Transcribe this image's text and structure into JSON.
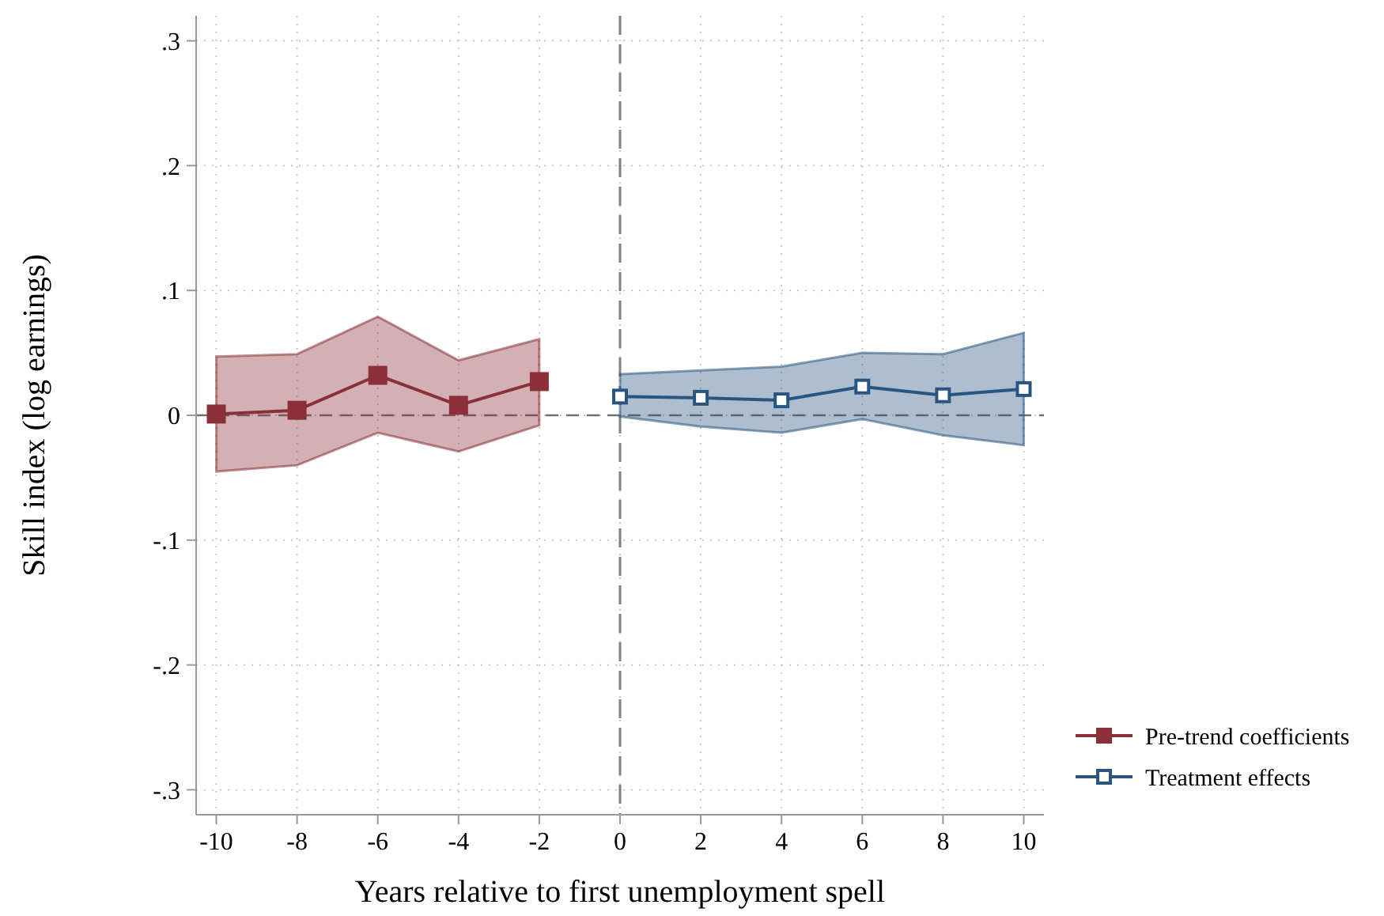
{
  "chart_data": {
    "type": "line",
    "xlabel": "Years relative to first unemployment spell",
    "ylabel": "Skill index (log earnings)",
    "xlim": [
      -10.5,
      10.5
    ],
    "xticks": [
      -10,
      -8,
      -6,
      -4,
      -2,
      0,
      2,
      4,
      6,
      8,
      10
    ],
    "ylim": [
      -0.32,
      0.32
    ],
    "yticks": [
      {
        "value": -0.3,
        "label": "-.3"
      },
      {
        "value": -0.2,
        "label": "-.2"
      },
      {
        "value": -0.1,
        "label": "-.1"
      },
      0,
      {
        "value": 0.1,
        "label": ".1"
      },
      {
        "value": 0.2,
        "label": ".2"
      },
      {
        "value": 0.3,
        "label": ".3"
      }
    ],
    "grid": true,
    "legend": "bottom right",
    "marker": "square",
    "ref_lines": [
      {
        "axis": "y",
        "value": 0,
        "color": "#707070",
        "line_style": "dashed"
      },
      {
        "axis": "x",
        "value": 0,
        "color": "#808080",
        "line_style": "dashed"
      }
    ],
    "series": [
      {
        "name": "Pre-trend coefficients",
        "color": "#8b3038",
        "x": [
          -10,
          -8,
          -6,
          -4,
          -2
        ],
        "values": [
          0.001,
          0.004,
          0.032,
          0.008,
          0.027
        ],
        "lower": [
          -0.045,
          -0.04,
          -0.014,
          -0.029,
          -0.008
        ],
        "upper": [
          0.047,
          0.049,
          0.079,
          0.044,
          0.061
        ]
      },
      {
        "name": "Treatment effects",
        "color": "#2a5580",
        "x": [
          0,
          2,
          4,
          6,
          8,
          10
        ],
        "values": [
          0.015,
          0.014,
          0.012,
          0.023,
          0.016,
          0.021
        ],
        "lower": [
          -0.001,
          -0.009,
          -0.014,
          -0.003,
          -0.016,
          -0.024
        ],
        "upper": [
          0.033,
          0.036,
          0.039,
          0.05,
          0.049,
          0.066
        ]
      }
    ]
  }
}
